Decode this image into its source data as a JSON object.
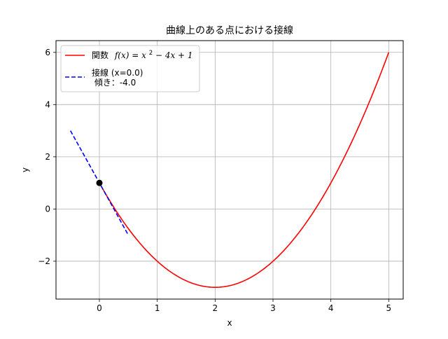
{
  "chart_data": {
    "type": "line",
    "title": "曲線上のある点における接線",
    "xlabel": "x",
    "ylabel": "y",
    "xlim": [
      -0.75,
      5.25
    ],
    "ylim": [
      -3.45,
      6.45
    ],
    "xticks": [
      0,
      1,
      2,
      3,
      4,
      5
    ],
    "yticks": [
      -2,
      0,
      2,
      4,
      6
    ],
    "xtick_labels": [
      "0",
      "1",
      "2",
      "3",
      "4",
      "5"
    ],
    "ytick_labels": [
      "−2",
      "0",
      "2",
      "4",
      "6"
    ],
    "grid": true,
    "legend_position": "upper-left",
    "series": [
      {
        "name": "関数 f(x) = x² − 4x + 1",
        "legend_prefix": "関数",
        "legend_math": "f(x) = x",
        "legend_sup": "2",
        "legend_math_tail": " − 4x + 1",
        "kind": "curve",
        "color": "#ff0000",
        "style": "solid",
        "x_range": [
          0,
          5
        ],
        "function": "x^2 - 4x + 1",
        "points": [
          [
            0,
            1
          ],
          [
            0.5,
            -0.75
          ],
          [
            1,
            -2
          ],
          [
            1.5,
            -2.75
          ],
          [
            2,
            -3
          ],
          [
            2.5,
            -2.75
          ],
          [
            3,
            -2
          ],
          [
            3.5,
            -0.75
          ],
          [
            4,
            1
          ],
          [
            4.5,
            3.25
          ],
          [
            5,
            6
          ]
        ]
      },
      {
        "name": "接線 (x=0.0) 傾き：-4.0",
        "legend_line1": "接線 (x=0.0)",
        "legend_line2": " 傾き：-4.0",
        "kind": "line",
        "color": "#0000ff",
        "style": "dashed",
        "points": [
          [
            -0.5,
            3
          ],
          [
            0.5,
            -1
          ]
        ]
      }
    ],
    "marker": {
      "x": 0,
      "y": 1,
      "color": "#000000"
    }
  }
}
